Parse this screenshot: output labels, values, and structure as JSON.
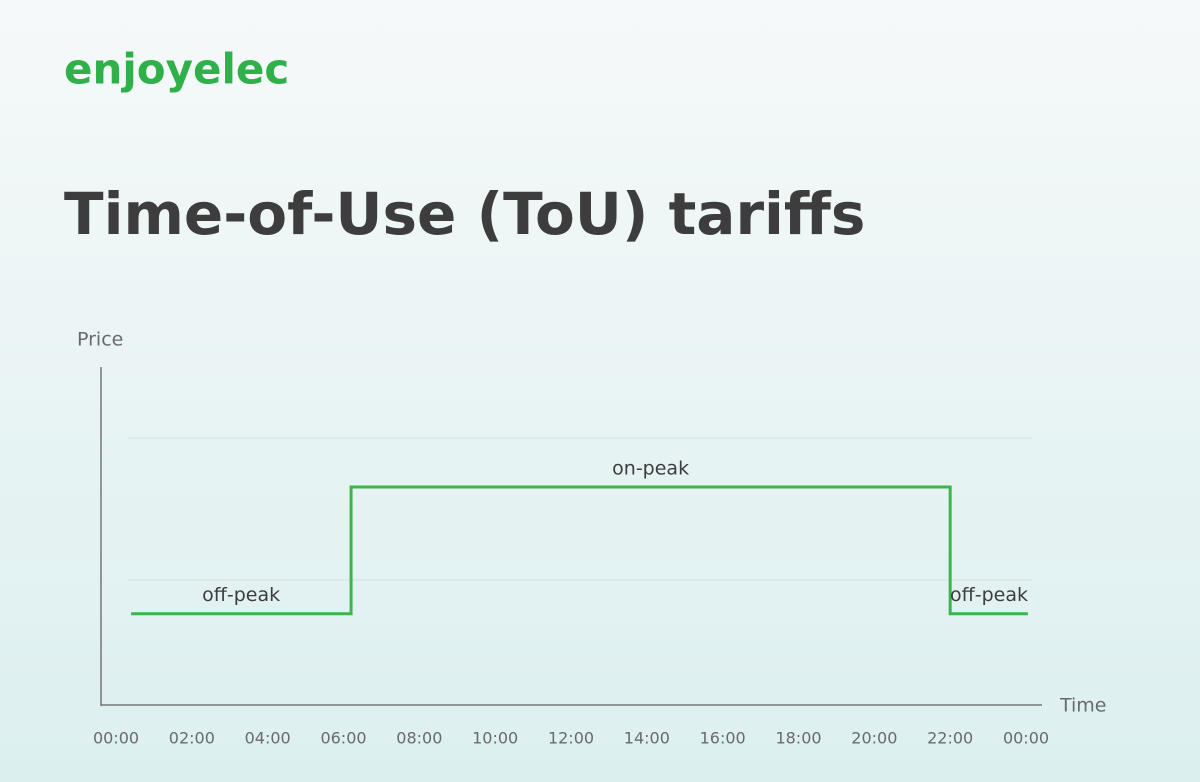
{
  "logo": "enjoyelec",
  "chart_data": {
    "type": "step",
    "title": "Time-of-Use (ToU) tariffs",
    "y_label": "Price",
    "x_label": "Time",
    "xlim": [
      0,
      24
    ],
    "xticks": [
      {
        "value": 0,
        "label": "00:00"
      },
      {
        "value": 2,
        "label": "02:00"
      },
      {
        "value": 4,
        "label": "04:00"
      },
      {
        "value": 6,
        "label": "06:00"
      },
      {
        "value": 8,
        "label": "08:00"
      },
      {
        "value": 10,
        "label": "10:00"
      },
      {
        "value": 12,
        "label": "12:00"
      },
      {
        "value": 14,
        "label": "14:00"
      },
      {
        "value": 16,
        "label": "16:00"
      },
      {
        "value": 18,
        "label": "18:00"
      },
      {
        "value": 20,
        "label": "20:00"
      },
      {
        "value": 22,
        "label": "22:00"
      },
      {
        "value": 24,
        "label": "00:00"
      }
    ],
    "ylim": [
      0,
      1
    ],
    "yticks": [
      0.37,
      0.79
    ],
    "grid": true,
    "series": [
      {
        "color": "#3cb54a",
        "x": [
          0.4,
          6.2,
          22,
          24.05
        ],
        "values": [
          0.27,
          0.645,
          0.27,
          0.27
        ]
      }
    ],
    "annotations": [
      "off-peak",
      "on-peak",
      "off-peak"
    ]
  }
}
